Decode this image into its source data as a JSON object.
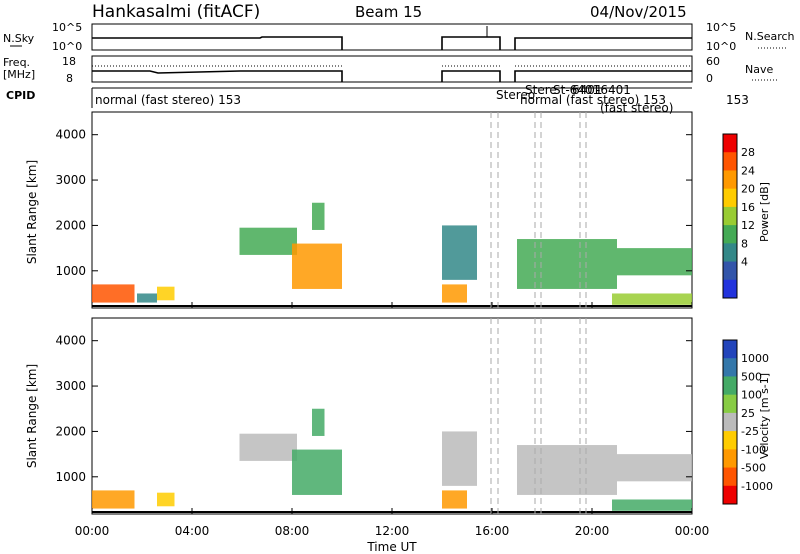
{
  "header": {
    "station": "Hankasalmi (fitACF)",
    "beam": "Beam 15",
    "date": "04/Nov/2015"
  },
  "params": {
    "nsky_label": "N.Sky",
    "nsky_ticks": [
      "10^5",
      "10^0"
    ],
    "nsearch_label": "N.Search",
    "nsearch_ticks": [
      "10^5",
      "10^0"
    ],
    "freq_label_1": "Freq.",
    "freq_label_2": "[MHz]",
    "freq_ticks": [
      "18",
      "8"
    ],
    "nave_label": "Nave",
    "nave_ticks": [
      "60",
      "0"
    ],
    "cpid_label": "CPID",
    "cpid_texts": [
      "normal (fast stereo)  153",
      "Stereo",
      "Stere",
      "St-6401",
      "6401",
      "-6401",
      "normal (fast stereo) 153",
      "(fast stereo)",
      "153"
    ]
  },
  "chart_data": [
    {
      "type": "heatmap",
      "title": "",
      "xlabel": "",
      "ylabel": "Slant Range [km]",
      "xlim": [
        "00:00",
        "24:00"
      ],
      "ylim": [
        180,
        4500
      ],
      "yticks": [
        "4000",
        "3000",
        "2000",
        "1000"
      ],
      "colorbar": {
        "label": "Power [dB]",
        "ticks": [
          "28",
          "24",
          "20",
          "16",
          "12",
          "8",
          "4"
        ],
        "colors": [
          "#ee0000",
          "#ff5500",
          "#ff9900",
          "#ffcc00",
          "#99cc33",
          "#44aa55",
          "#338888",
          "#3355aa",
          "#2233dd"
        ]
      },
      "regions": [
        {
          "t0": 0.0,
          "t1": 1.7,
          "r0": 300,
          "r1": 700,
          "level": 26
        },
        {
          "t0": 1.8,
          "t1": 2.6,
          "r0": 300,
          "r1": 500,
          "level": 8
        },
        {
          "t0": 2.6,
          "t1": 3.3,
          "r0": 350,
          "r1": 650,
          "level": 20
        },
        {
          "t0": 5.9,
          "t1": 8.2,
          "r0": 1350,
          "r1": 1950,
          "level": 12
        },
        {
          "t0": 8.0,
          "t1": 10.0,
          "r0": 600,
          "r1": 1600,
          "level": 22
        },
        {
          "t0": 8.8,
          "t1": 9.3,
          "r0": 1900,
          "r1": 2500,
          "level": 12
        },
        {
          "t0": 14.0,
          "t1": 15.0,
          "r0": 300,
          "r1": 700,
          "level": 24
        },
        {
          "t0": 14.0,
          "t1": 15.4,
          "r0": 800,
          "r1": 2000,
          "level": 8
        },
        {
          "t0": 17.0,
          "t1": 21.0,
          "r0": 600,
          "r1": 1700,
          "level": 10
        },
        {
          "t0": 21.0,
          "t1": 24.0,
          "r0": 900,
          "r1": 1500,
          "level": 12
        },
        {
          "t0": 20.8,
          "t1": 24.0,
          "r0": 250,
          "r1": 500,
          "level": 14
        }
      ]
    },
    {
      "type": "heatmap",
      "title": "",
      "xlabel": "Time UT",
      "ylabel": "Slant Range [km]",
      "xlim": [
        "00:00",
        "24:00"
      ],
      "ylim": [
        180,
        4500
      ],
      "xticks": [
        "00:00",
        "04:00",
        "08:00",
        "12:00",
        "16:00",
        "20:00",
        "00:00"
      ],
      "yticks": [
        "4000",
        "3000",
        "2000",
        "1000"
      ],
      "colorbar": {
        "label": "Velocity [m s-1]",
        "ticks": [
          "1000",
          "500",
          "100",
          "25",
          "-25",
          "-100",
          "-500",
          "-1000"
        ],
        "colors": [
          "#2244bb",
          "#3377aa",
          "#44aa66",
          "#88cc44",
          "#bbbbbb",
          "#ffcc00",
          "#ff9900",
          "#ff5500",
          "#ee0000"
        ]
      },
      "regions": [
        {
          "t0": 0.0,
          "t1": 1.7,
          "r0": 300,
          "r1": 700,
          "level": -150
        },
        {
          "t0": 2.6,
          "t1": 3.3,
          "r0": 350,
          "r1": 650,
          "level": -100
        },
        {
          "t0": 5.9,
          "t1": 8.2,
          "r0": 1350,
          "r1": 1950,
          "level": 0
        },
        {
          "t0": 8.0,
          "t1": 10.0,
          "r0": 600,
          "r1": 1600,
          "level": 150
        },
        {
          "t0": 8.8,
          "t1": 9.3,
          "r0": 1900,
          "r1": 2500,
          "level": 200
        },
        {
          "t0": 14.0,
          "t1": 15.0,
          "r0": 300,
          "r1": 700,
          "level": -200
        },
        {
          "t0": 14.0,
          "t1": 15.4,
          "r0": 800,
          "r1": 2000,
          "level": 0
        },
        {
          "t0": 17.0,
          "t1": 21.0,
          "r0": 600,
          "r1": 1700,
          "level": 0
        },
        {
          "t0": 21.0,
          "t1": 24.0,
          "r0": 900,
          "r1": 1500,
          "level": 0
        },
        {
          "t0": 20.8,
          "t1": 24.0,
          "r0": 250,
          "r1": 500,
          "level": 100
        }
      ]
    }
  ]
}
